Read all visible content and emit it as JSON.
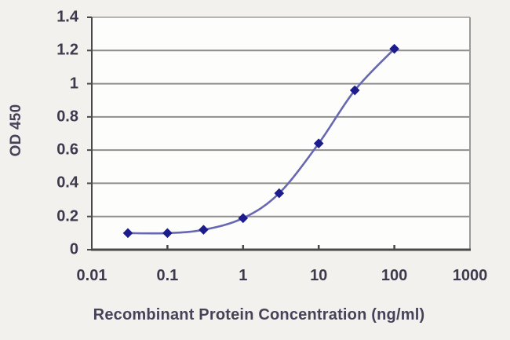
{
  "chart_data": {
    "type": "line",
    "title": "",
    "xlabel": "Recombinant Protein Concentration (ng/ml)",
    "ylabel": "OD 450",
    "x_scale": "log",
    "xlim": [
      0.01,
      1000
    ],
    "ylim": [
      0,
      1.4
    ],
    "x_ticks": [
      0.01,
      0.1,
      1,
      10,
      100,
      1000
    ],
    "x_tick_labels": [
      "0.01",
      "0.1",
      "1",
      "10",
      "100",
      "1000"
    ],
    "y_ticks": [
      0,
      0.2,
      0.4,
      0.6,
      0.8,
      1,
      1.2,
      1.4
    ],
    "y_tick_labels": [
      "0",
      "0.2",
      "0.4",
      "0.6",
      "0.8",
      "1",
      "1.2",
      "1.4"
    ],
    "grid": "horizontal",
    "legend": "none",
    "series": [
      {
        "name": "OD 450",
        "marker": "diamond",
        "smooth": true,
        "x": [
          0.03,
          0.1,
          0.3,
          1,
          3,
          10,
          30,
          100
        ],
        "y": [
          0.1,
          0.1,
          0.12,
          0.19,
          0.34,
          0.64,
          0.96,
          1.21
        ]
      }
    ]
  },
  "colors": {
    "outer_background": "#f2f1ee",
    "plot_background": "#fdfdfb",
    "gridline": "#8e8e8e",
    "gridline_top": "#b4b4b4",
    "axis_line": "#4a4a4a",
    "right_border": "#9a9a9a",
    "tick_mark": "#4a4a4a",
    "series_line": "#6767b2",
    "marker_fill": "#1c1c8c",
    "tick_text": "#3e3a4e",
    "title_text": "#474258"
  }
}
